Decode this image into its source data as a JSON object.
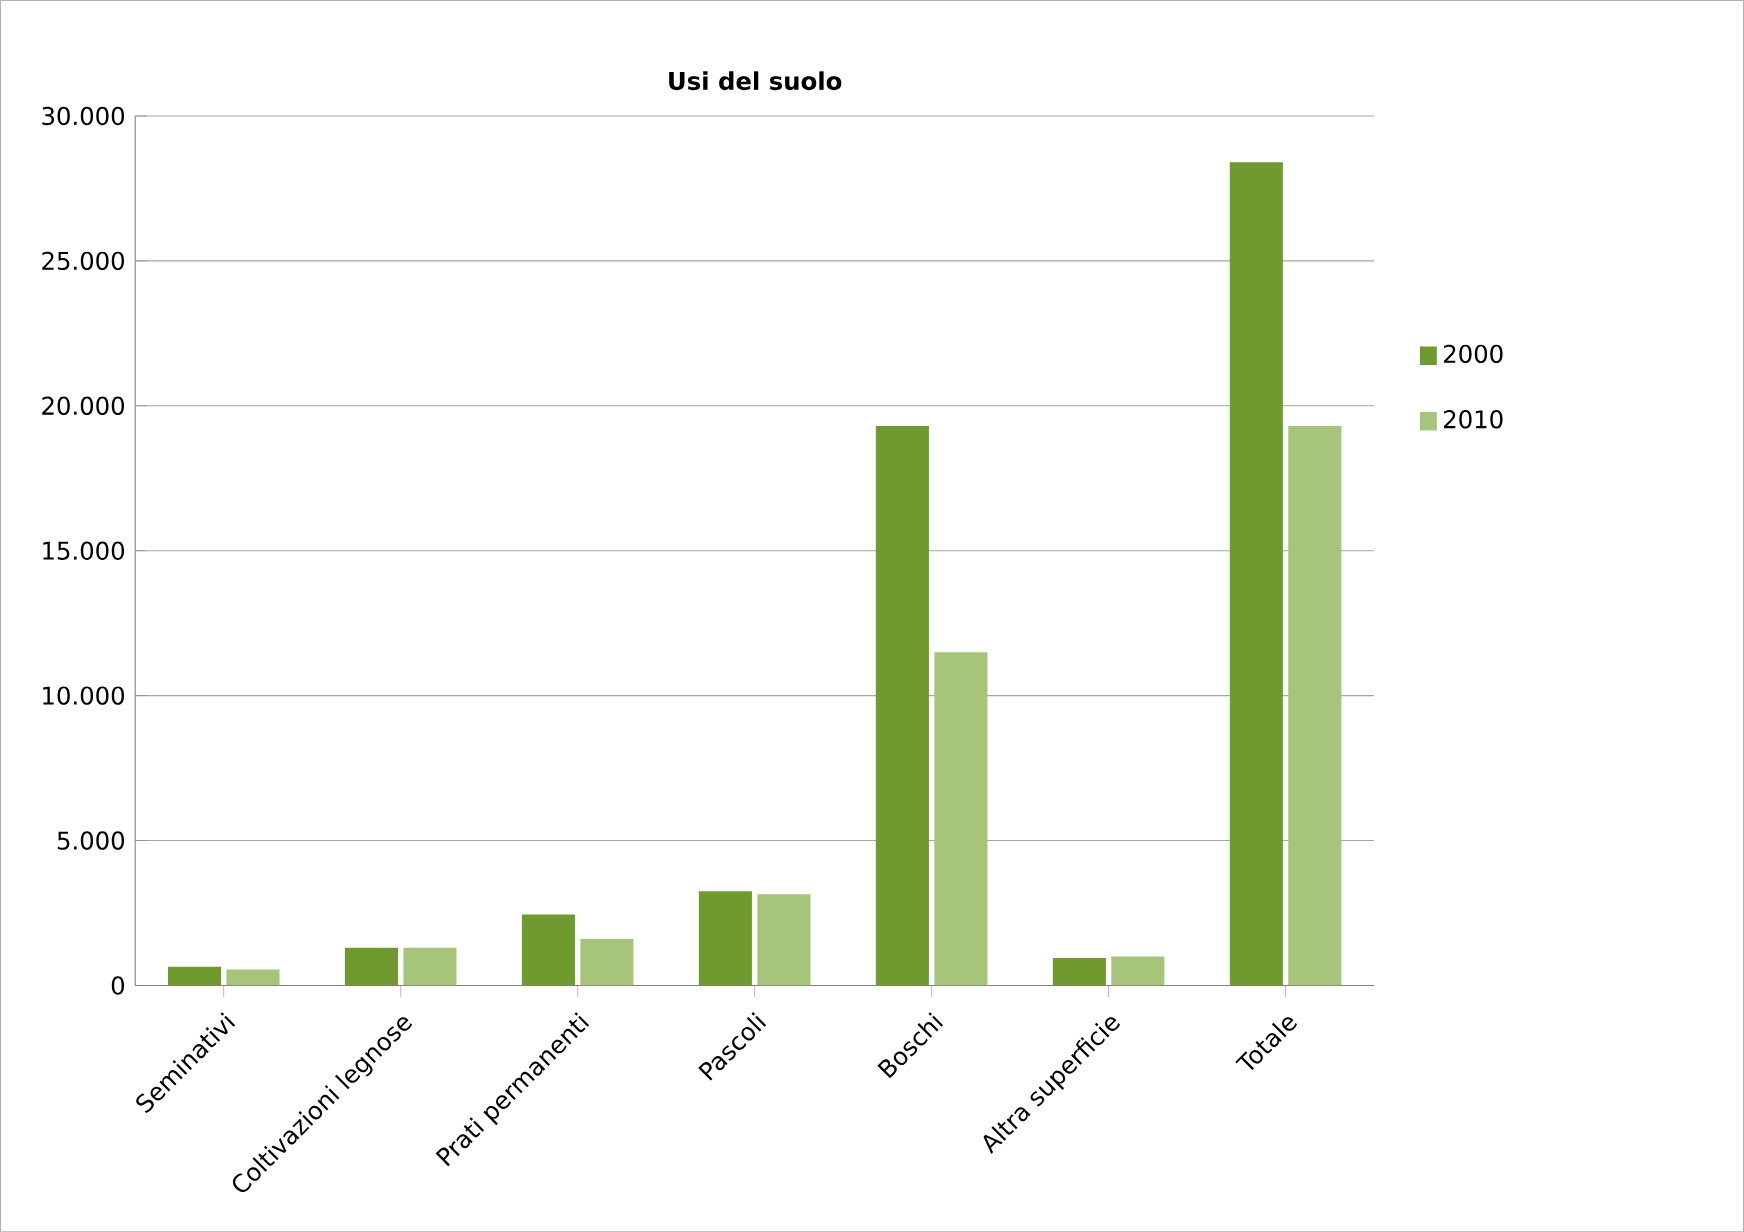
{
  "chart_data": {
    "type": "bar",
    "title": "Usi del suolo",
    "categories": [
      "Seminativi",
      "Coltivazioni legnose",
      "Prati permanenti",
      "Pascoli",
      "Boschi",
      "Altra superficie",
      "Totale"
    ],
    "series": [
      {
        "name": "2000",
        "color": "#6e9a2e",
        "values": [
          650,
          1300,
          2450,
          3250,
          19300,
          950,
          28400
        ]
      },
      {
        "name": "2010",
        "color": "#a6c57a",
        "values": [
          550,
          1300,
          1600,
          3150,
          11500,
          1000,
          19300
        ]
      }
    ],
    "ylim": [
      0,
      30000
    ],
    "yticks": [
      {
        "value": 0,
        "label": "0"
      },
      {
        "value": 5000,
        "label": "5.000"
      },
      {
        "value": 10000,
        "label": "10.000"
      },
      {
        "value": 15000,
        "label": "15.000"
      },
      {
        "value": 20000,
        "label": "20.000"
      },
      {
        "value": 25000,
        "label": "25.000"
      },
      {
        "value": 30000,
        "label": "30.000"
      }
    ],
    "grid": "y",
    "legend": "right"
  }
}
